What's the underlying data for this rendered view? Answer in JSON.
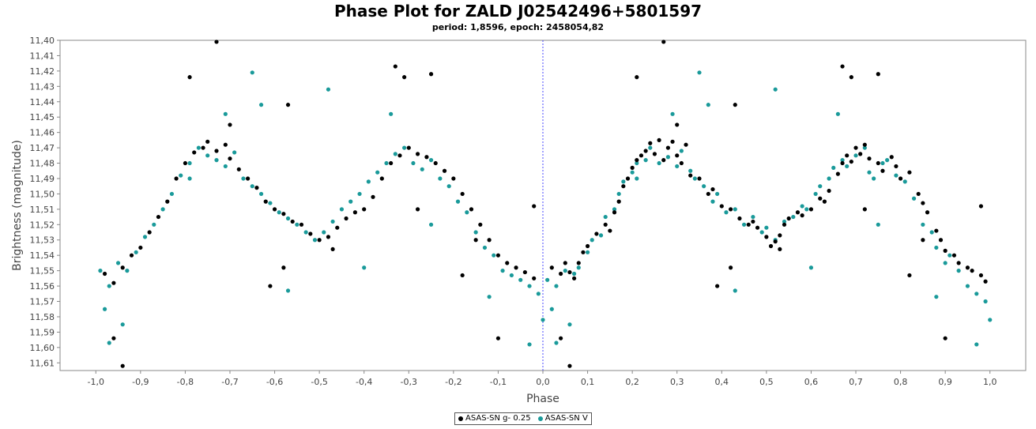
{
  "chart_data": {
    "type": "scatter",
    "title": "Phase Plot for ZALD J02542496+5801597",
    "subtitle": "period: 1,8596, epoch: 2458054,82",
    "xlabel": "Phase",
    "ylabel": "Brightness (magnitude)",
    "xlim": [
      -1.08,
      1.08
    ],
    "ylim": [
      11.4,
      11.615
    ],
    "y_inverted": true,
    "x_ticks": [
      "-1,0",
      "-0,9",
      "-0,8",
      "-0,7",
      "-0,6",
      "-0,5",
      "-0,4",
      "-0,3",
      "-0,2",
      "-0,1",
      "0,0",
      "0,1",
      "0,2",
      "0,3",
      "0,4",
      "0,5",
      "0,6",
      "0,7",
      "0,8",
      "0,9",
      "1,0"
    ],
    "y_ticks": [
      "11,40",
      "11,41",
      "11,42",
      "11,43",
      "11,44",
      "11,45",
      "11,46",
      "11,47",
      "11,48",
      "11,49",
      "11,50",
      "11,51",
      "11,52",
      "11,53",
      "11,54",
      "11,55",
      "11,56",
      "11,57",
      "11,58",
      "11,59",
      "11,60",
      "11,61"
    ],
    "grid": false,
    "legend_position": "bottom-center",
    "reference_line_x": 0.0,
    "series": [
      {
        "name": "ASAS-SN g- 0.25",
        "color": "#000000",
        "points": [
          [
            0.02,
            11.548
          ],
          [
            0.04,
            11.552
          ],
          [
            0.05,
            11.545
          ],
          [
            0.06,
            11.551
          ],
          [
            0.07,
            11.555
          ],
          [
            0.08,
            11.545
          ],
          [
            0.09,
            11.538
          ],
          [
            0.1,
            11.534
          ],
          [
            0.12,
            11.526
          ],
          [
            0.14,
            11.52
          ],
          [
            0.15,
            11.524
          ],
          [
            0.16,
            11.512
          ],
          [
            0.17,
            11.505
          ],
          [
            0.18,
            11.495
          ],
          [
            0.19,
            11.49
          ],
          [
            0.2,
            11.483
          ],
          [
            0.21,
            11.478
          ],
          [
            0.22,
            11.475
          ],
          [
            0.23,
            11.472
          ],
          [
            0.24,
            11.467
          ],
          [
            0.25,
            11.474
          ],
          [
            0.26,
            11.465
          ],
          [
            0.27,
            11.478
          ],
          [
            0.28,
            11.47
          ],
          [
            0.29,
            11.466
          ],
          [
            0.3,
            11.475
          ],
          [
            0.31,
            11.48
          ],
          [
            0.32,
            11.468
          ],
          [
            0.33,
            11.488
          ],
          [
            0.35,
            11.49
          ],
          [
            0.37,
            11.5
          ],
          [
            0.38,
            11.497
          ],
          [
            0.4,
            11.508
          ],
          [
            0.42,
            11.51
          ],
          [
            0.44,
            11.516
          ],
          [
            0.46,
            11.52
          ],
          [
            0.47,
            11.518
          ],
          [
            0.48,
            11.522
          ],
          [
            0.5,
            11.528
          ],
          [
            0.51,
            11.534
          ],
          [
            0.52,
            11.531
          ],
          [
            0.53,
            11.527
          ],
          [
            0.54,
            11.52
          ],
          [
            0.55,
            11.516
          ],
          [
            0.57,
            11.512
          ],
          [
            0.58,
            11.514
          ],
          [
            0.6,
            11.51
          ],
          [
            0.62,
            11.503
          ],
          [
            0.63,
            11.505
          ],
          [
            0.64,
            11.498
          ],
          [
            0.66,
            11.487
          ],
          [
            0.67,
            11.48
          ],
          [
            0.68,
            11.475
          ],
          [
            0.69,
            11.479
          ],
          [
            0.7,
            11.47
          ],
          [
            0.71,
            11.474
          ],
          [
            0.72,
            11.468
          ],
          [
            0.73,
            11.477
          ],
          [
            0.75,
            11.48
          ],
          [
            0.76,
            11.485
          ],
          [
            0.78,
            11.476
          ],
          [
            0.79,
            11.482
          ],
          [
            0.8,
            11.49
          ],
          [
            0.82,
            11.486
          ],
          [
            0.84,
            11.5
          ],
          [
            0.85,
            11.506
          ],
          [
            0.86,
            11.512
          ],
          [
            0.88,
            11.524
          ],
          [
            0.89,
            11.53
          ],
          [
            0.9,
            11.537
          ],
          [
            0.92,
            11.54
          ],
          [
            0.93,
            11.545
          ],
          [
            0.95,
            11.548
          ],
          [
            0.96,
            11.55
          ],
          [
            0.98,
            11.553
          ],
          [
            0.99,
            11.557
          ],
          [
            0.06,
            11.612
          ],
          [
            0.04,
            11.594
          ],
          [
            0.27,
            11.401
          ],
          [
            0.67,
            11.417
          ],
          [
            0.69,
            11.424
          ],
          [
            0.75,
            11.422
          ],
          [
            0.21,
            11.424
          ],
          [
            0.43,
            11.442
          ],
          [
            0.82,
            11.553
          ],
          [
            0.9,
            11.594
          ],
          [
            0.98,
            11.508
          ],
          [
            0.53,
            11.536
          ],
          [
            0.3,
            11.455
          ],
          [
            0.85,
            11.53
          ],
          [
            0.39,
            11.56
          ],
          [
            0.42,
            11.548
          ],
          [
            0.72,
            11.51
          ],
          [
            -0.98,
            11.552
          ],
          [
            -0.96,
            11.558
          ],
          [
            -0.94,
            11.548
          ],
          [
            -0.92,
            11.54
          ],
          [
            -0.9,
            11.535
          ],
          [
            -0.88,
            11.525
          ],
          [
            -0.86,
            11.515
          ],
          [
            -0.84,
            11.505
          ],
          [
            -0.82,
            11.49
          ],
          [
            -0.8,
            11.48
          ],
          [
            -0.78,
            11.473
          ],
          [
            -0.76,
            11.47
          ],
          [
            -0.75,
            11.466
          ],
          [
            -0.73,
            11.472
          ],
          [
            -0.71,
            11.468
          ],
          [
            -0.7,
            11.477
          ],
          [
            -0.68,
            11.484
          ],
          [
            -0.66,
            11.49
          ],
          [
            -0.64,
            11.496
          ],
          [
            -0.62,
            11.505
          ],
          [
            -0.6,
            11.51
          ],
          [
            -0.58,
            11.513
          ],
          [
            -0.56,
            11.518
          ],
          [
            -0.54,
            11.52
          ],
          [
            -0.52,
            11.526
          ],
          [
            -0.5,
            11.53
          ],
          [
            -0.48,
            11.528
          ],
          [
            -0.46,
            11.522
          ],
          [
            -0.44,
            11.516
          ],
          [
            -0.42,
            11.512
          ],
          [
            -0.4,
            11.51
          ],
          [
            -0.38,
            11.502
          ],
          [
            -0.36,
            11.49
          ],
          [
            -0.34,
            11.48
          ],
          [
            -0.32,
            11.475
          ],
          [
            -0.3,
            11.47
          ],
          [
            -0.28,
            11.474
          ],
          [
            -0.26,
            11.476
          ],
          [
            -0.24,
            11.48
          ],
          [
            -0.22,
            11.485
          ],
          [
            -0.2,
            11.49
          ],
          [
            -0.18,
            11.5
          ],
          [
            -0.16,
            11.51
          ],
          [
            -0.14,
            11.52
          ],
          [
            -0.12,
            11.53
          ],
          [
            -0.1,
            11.54
          ],
          [
            -0.08,
            11.545
          ],
          [
            -0.06,
            11.548
          ],
          [
            -0.04,
            11.551
          ],
          [
            -0.02,
            11.555
          ],
          [
            -0.94,
            11.612
          ],
          [
            -0.96,
            11.594
          ],
          [
            -0.73,
            11.401
          ],
          [
            -0.33,
            11.417
          ],
          [
            -0.31,
            11.424
          ],
          [
            -0.25,
            11.422
          ],
          [
            -0.79,
            11.424
          ],
          [
            -0.57,
            11.442
          ],
          [
            -0.18,
            11.553
          ],
          [
            -0.1,
            11.594
          ],
          [
            -0.02,
            11.508
          ],
          [
            -0.47,
            11.536
          ],
          [
            -0.7,
            11.455
          ],
          [
            -0.15,
            11.53
          ],
          [
            -0.61,
            11.56
          ],
          [
            -0.58,
            11.548
          ],
          [
            -0.28,
            11.51
          ]
        ]
      },
      {
        "name": "ASAS-SN V",
        "color": "#1a9a9a",
        "points": [
          [
            0.01,
            11.556
          ],
          [
            0.03,
            11.56
          ],
          [
            0.05,
            11.55
          ],
          [
            0.07,
            11.552
          ],
          [
            0.08,
            11.548
          ],
          [
            0.1,
            11.538
          ],
          [
            0.11,
            11.53
          ],
          [
            0.13,
            11.527
          ],
          [
            0.14,
            11.515
          ],
          [
            0.16,
            11.51
          ],
          [
            0.17,
            11.5
          ],
          [
            0.18,
            11.492
          ],
          [
            0.2,
            11.486
          ],
          [
            0.21,
            11.48
          ],
          [
            0.23,
            11.478
          ],
          [
            0.24,
            11.47
          ],
          [
            0.26,
            11.48
          ],
          [
            0.28,
            11.476
          ],
          [
            0.3,
            11.482
          ],
          [
            0.31,
            11.472
          ],
          [
            0.33,
            11.485
          ],
          [
            0.34,
            11.49
          ],
          [
            0.36,
            11.495
          ],
          [
            0.38,
            11.505
          ],
          [
            0.39,
            11.5
          ],
          [
            0.41,
            11.512
          ],
          [
            0.43,
            11.51
          ],
          [
            0.45,
            11.52
          ],
          [
            0.47,
            11.515
          ],
          [
            0.49,
            11.525
          ],
          [
            0.5,
            11.522
          ],
          [
            0.52,
            11.53
          ],
          [
            0.54,
            11.518
          ],
          [
            0.56,
            11.515
          ],
          [
            0.58,
            11.508
          ],
          [
            0.59,
            11.51
          ],
          [
            0.61,
            11.5
          ],
          [
            0.62,
            11.495
          ],
          [
            0.64,
            11.49
          ],
          [
            0.65,
            11.483
          ],
          [
            0.67,
            11.478
          ],
          [
            0.68,
            11.482
          ],
          [
            0.7,
            11.475
          ],
          [
            0.72,
            11.47
          ],
          [
            0.73,
            11.486
          ],
          [
            0.74,
            11.49
          ],
          [
            0.76,
            11.48
          ],
          [
            0.77,
            11.478
          ],
          [
            0.79,
            11.488
          ],
          [
            0.81,
            11.492
          ],
          [
            0.83,
            11.503
          ],
          [
            0.85,
            11.52
          ],
          [
            0.87,
            11.525
          ],
          [
            0.88,
            11.535
          ],
          [
            0.9,
            11.545
          ],
          [
            0.91,
            11.54
          ],
          [
            0.93,
            11.55
          ],
          [
            0.95,
            11.56
          ],
          [
            0.97,
            11.565
          ],
          [
            0.99,
            11.57
          ],
          [
            0.02,
            11.575
          ],
          [
            0.06,
            11.585
          ],
          [
            0.03,
            11.597
          ],
          [
            0.35,
            11.421
          ],
          [
            0.37,
            11.442
          ],
          [
            0.52,
            11.432
          ],
          [
            0.29,
            11.448
          ],
          [
            0.66,
            11.448
          ],
          [
            0.88,
            11.567
          ],
          [
            1.0,
            11.582
          ],
          [
            0.97,
            11.598
          ],
          [
            0.6,
            11.548
          ],
          [
            0.43,
            11.563
          ],
          [
            0.21,
            11.49
          ],
          [
            0.75,
            11.52
          ],
          [
            -0.99,
            11.55
          ],
          [
            -0.97,
            11.56
          ],
          [
            -0.95,
            11.545
          ],
          [
            -0.93,
            11.55
          ],
          [
            -0.91,
            11.538
          ],
          [
            -0.89,
            11.528
          ],
          [
            -0.87,
            11.52
          ],
          [
            -0.85,
            11.51
          ],
          [
            -0.83,
            11.5
          ],
          [
            -0.81,
            11.488
          ],
          [
            -0.79,
            11.48
          ],
          [
            -0.77,
            11.47
          ],
          [
            -0.75,
            11.475
          ],
          [
            -0.73,
            11.478
          ],
          [
            -0.71,
            11.482
          ],
          [
            -0.69,
            11.473
          ],
          [
            -0.67,
            11.49
          ],
          [
            -0.65,
            11.495
          ],
          [
            -0.63,
            11.5
          ],
          [
            -0.61,
            11.506
          ],
          [
            -0.59,
            11.512
          ],
          [
            -0.57,
            11.516
          ],
          [
            -0.55,
            11.52
          ],
          [
            -0.53,
            11.525
          ],
          [
            -0.51,
            11.53
          ],
          [
            -0.49,
            11.525
          ],
          [
            -0.47,
            11.518
          ],
          [
            -0.45,
            11.51
          ],
          [
            -0.43,
            11.505
          ],
          [
            -0.41,
            11.5
          ],
          [
            -0.39,
            11.492
          ],
          [
            -0.37,
            11.486
          ],
          [
            -0.35,
            11.48
          ],
          [
            -0.33,
            11.474
          ],
          [
            -0.31,
            11.47
          ],
          [
            -0.29,
            11.48
          ],
          [
            -0.27,
            11.484
          ],
          [
            -0.25,
            11.478
          ],
          [
            -0.23,
            11.49
          ],
          [
            -0.21,
            11.495
          ],
          [
            -0.19,
            11.505
          ],
          [
            -0.17,
            11.512
          ],
          [
            -0.15,
            11.525
          ],
          [
            -0.13,
            11.535
          ],
          [
            -0.11,
            11.54
          ],
          [
            -0.09,
            11.55
          ],
          [
            -0.07,
            11.553
          ],
          [
            -0.05,
            11.556
          ],
          [
            -0.03,
            11.56
          ],
          [
            -0.01,
            11.565
          ],
          [
            -0.98,
            11.575
          ],
          [
            -0.94,
            11.585
          ],
          [
            -0.97,
            11.597
          ],
          [
            -0.65,
            11.421
          ],
          [
            -0.63,
            11.442
          ],
          [
            -0.48,
            11.432
          ],
          [
            -0.71,
            11.448
          ],
          [
            -0.34,
            11.448
          ],
          [
            -0.12,
            11.567
          ],
          [
            0.0,
            11.582
          ],
          [
            -0.03,
            11.598
          ],
          [
            -0.4,
            11.548
          ],
          [
            -0.57,
            11.563
          ],
          [
            -0.79,
            11.49
          ],
          [
            -0.25,
            11.52
          ]
        ]
      }
    ]
  }
}
